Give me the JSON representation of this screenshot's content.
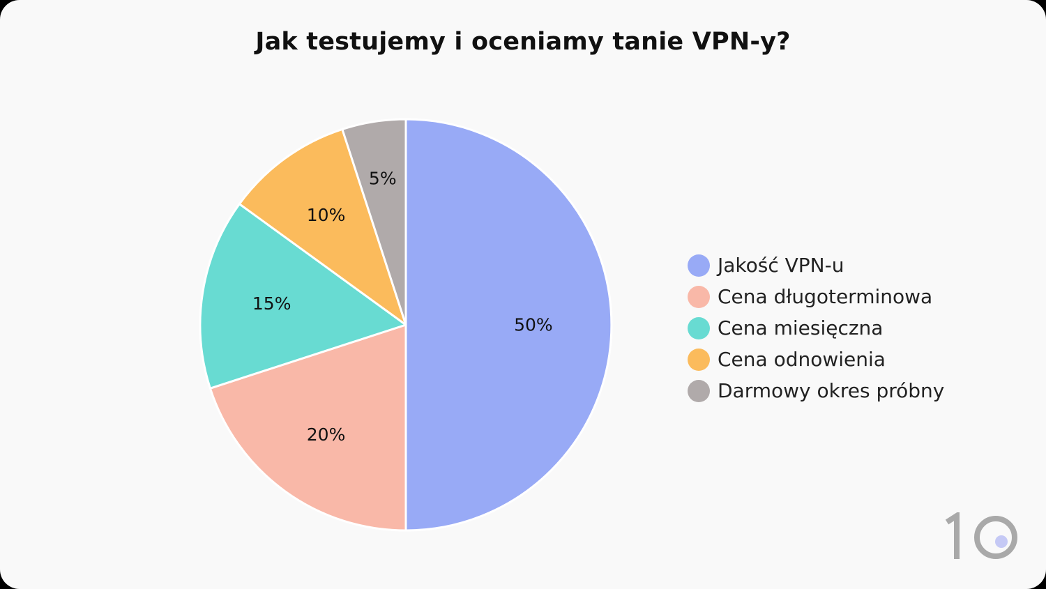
{
  "chart_data": {
    "type": "pie",
    "title": "Jak testujemy i oceniamy tanie VPN-y?",
    "slices": [
      {
        "label": "Jakość VPN-u",
        "value": 50,
        "display": "50%",
        "color": "#98aaf6"
      },
      {
        "label": "Cena długoterminowa",
        "value": 20,
        "display": "20%",
        "color": "#f9b8a8"
      },
      {
        "label": "Cena miesięczna",
        "value": 15,
        "display": "15%",
        "color": "#68dbd2"
      },
      {
        "label": "Cena odnowienia",
        "value": 10,
        "display": "10%",
        "color": "#fbbb5c"
      },
      {
        "label": "Darmowy okres próbny",
        "value": 5,
        "display": "5%",
        "color": "#b0aaaa"
      }
    ],
    "legend_position": "right"
  },
  "brand": {
    "logo_text": "10",
    "logo_color": "#a9a9a9",
    "logo_dot_color": "#c5c9f5"
  }
}
